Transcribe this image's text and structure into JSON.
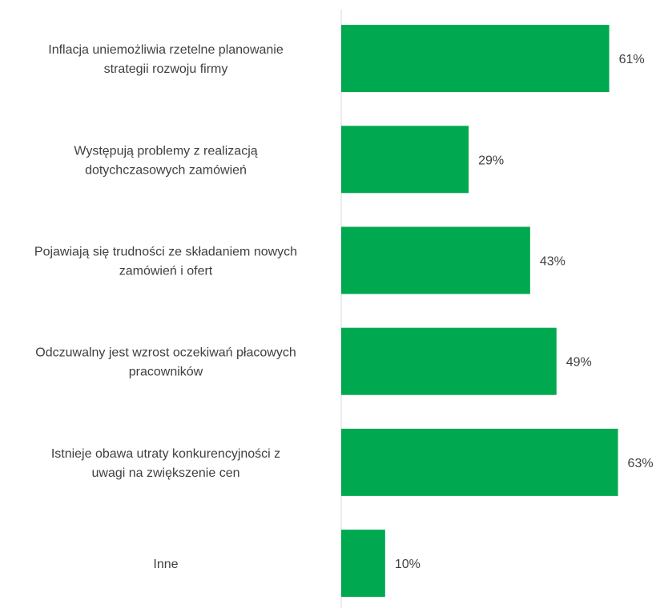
{
  "chart_data": {
    "type": "bar",
    "orientation": "horizontal",
    "categories": [
      [
        "Inflacja uniemożliwia rzetelne planowanie",
        "strategii rozwoju firmy"
      ],
      [
        "Występują problemy z realizacją",
        "dotychczasowych zamówień"
      ],
      [
        "Pojawiają się trudności ze składaniem nowych",
        "zamówień i ofert"
      ],
      [
        "Odczuwalny jest wzrost oczekiwań płacowych",
        "pracowników"
      ],
      [
        "Istnieje obawa utraty konkurencyjności z",
        "uwagi na zwiększenie cen"
      ],
      [
        "Inne"
      ]
    ],
    "values": [
      61,
      29,
      43,
      49,
      63,
      10
    ],
    "value_labels": [
      "61%",
      "29%",
      "43%",
      "49%",
      "63%",
      "10%"
    ],
    "xlim": [
      0,
      100
    ],
    "bar_color": "#00A94F",
    "axis_color": "#D9D9D9",
    "grid": false,
    "legend": "none"
  }
}
